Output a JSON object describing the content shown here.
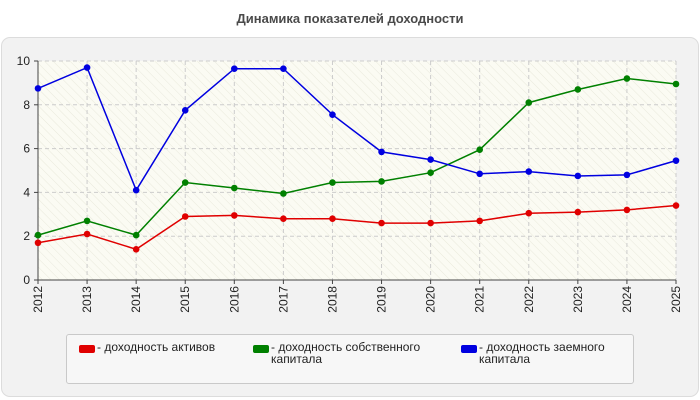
{
  "chart_data": {
    "type": "line",
    "title": "Динамика показателей доходности",
    "xlabel": "",
    "ylabel": "",
    "ylim": [
      0,
      10
    ],
    "yticks": [
      0,
      2,
      4,
      6,
      8,
      10
    ],
    "grid": true,
    "legend_position": "bottom",
    "categories": [
      "2012",
      "2013",
      "2014",
      "2015",
      "2016",
      "2017",
      "2018",
      "2019",
      "2020",
      "2021",
      "2022",
      "2023",
      "2024",
      "2025"
    ],
    "series": [
      {
        "name": "- доходность активов",
        "color": "#e00000",
        "values": [
          1.7,
          2.1,
          1.4,
          2.9,
          2.95,
          2.8,
          2.8,
          2.6,
          2.6,
          2.7,
          3.05,
          3.1,
          3.2,
          3.4
        ]
      },
      {
        "name": "- доходность собственного капитала",
        "color": "#008000",
        "values": [
          2.05,
          2.7,
          2.05,
          4.45,
          4.2,
          3.95,
          4.45,
          4.5,
          4.9,
          5.95,
          8.1,
          8.7,
          9.2,
          8.95
        ]
      },
      {
        "name": "- доходность заемного капитала",
        "color": "#0000e0",
        "values": [
          8.75,
          9.7,
          4.1,
          7.75,
          9.65,
          9.65,
          7.55,
          5.85,
          5.5,
          4.85,
          4.95,
          4.75,
          4.8,
          5.45
        ]
      }
    ]
  }
}
